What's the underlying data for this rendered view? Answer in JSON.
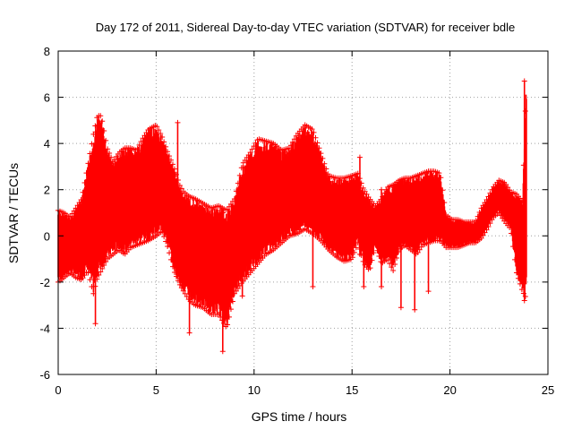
{
  "chart_data": {
    "type": "scatter",
    "title": "Day 172 of 2011, Sidereal Day-to-day VTEC variation (SDTVAR) for receiver bdle",
    "xlabel": "GPS time / hours",
    "ylabel": "SDTVAR / TECUs",
    "xlim": [
      0,
      25
    ],
    "ylim": [
      -6,
      8
    ],
    "xticks": [
      0,
      5,
      10,
      15,
      20,
      25
    ],
    "yticks": [
      -6,
      -4,
      -2,
      0,
      2,
      4,
      6,
      8
    ],
    "xtick_labels": [
      "0",
      "5",
      "10",
      "15",
      "20",
      "25"
    ],
    "ytick_labels": [
      "-6",
      "-4",
      "-2",
      "0",
      "2",
      "4",
      "6",
      "8"
    ],
    "grid": true,
    "marker": "+",
    "color": "#ff0000",
    "series": [
      {
        "name": "SDTVAR",
        "envelope": {
          "x": [
            0.0,
            0.3,
            0.6,
            0.9,
            1.2,
            1.5,
            1.8,
            2.0,
            2.2,
            2.5,
            2.8,
            3.1,
            3.4,
            3.7,
            4.0,
            4.3,
            4.6,
            5.0,
            5.3,
            5.6,
            5.9,
            6.2,
            6.4,
            6.7,
            7.0,
            7.4,
            7.8,
            8.2,
            8.6,
            9.0,
            9.4,
            9.8,
            10.2,
            10.6,
            11.0,
            11.4,
            11.8,
            12.2,
            12.6,
            13.0,
            13.4,
            13.8,
            14.2,
            14.6,
            15.0,
            15.3,
            15.6,
            15.9,
            16.2,
            16.5,
            16.8,
            17.1,
            17.4,
            17.7,
            18.0,
            18.3,
            18.6,
            18.9,
            19.2,
            19.5,
            19.8,
            20.1,
            20.4,
            20.7,
            21.0,
            21.3,
            21.6,
            21.9,
            22.2,
            22.5,
            22.8,
            23.1,
            23.4,
            23.7,
            23.9
          ],
          "upper": [
            1.1,
            1.0,
            0.8,
            1.2,
            1.6,
            3.0,
            4.4,
            5.2,
            5.2,
            3.8,
            3.2,
            3.6,
            3.8,
            3.8,
            3.7,
            4.2,
            4.6,
            4.8,
            4.3,
            3.6,
            3.0,
            2.2,
            1.9,
            1.7,
            1.6,
            1.4,
            1.2,
            1.3,
            1.1,
            1.6,
            3.1,
            3.6,
            4.2,
            4.1,
            4.0,
            3.7,
            3.8,
            4.4,
            4.8,
            4.6,
            3.6,
            2.6,
            2.5,
            2.5,
            2.6,
            2.7,
            2.0,
            1.6,
            1.3,
            1.6,
            2.1,
            2.2,
            2.4,
            2.5,
            2.5,
            2.6,
            2.7,
            2.8,
            2.8,
            2.7,
            0.9,
            0.7,
            0.7,
            0.6,
            0.6,
            0.6,
            1.2,
            1.6,
            2.1,
            2.4,
            2.3,
            1.9,
            1.8,
            1.5,
            6.7
          ],
          "lower": [
            -2.0,
            -1.8,
            -1.6,
            -1.8,
            -1.9,
            -1.5,
            -2.5,
            -1.8,
            -1.5,
            -1.0,
            -0.8,
            -0.6,
            -0.8,
            -0.5,
            -0.4,
            -0.3,
            -0.2,
            0.0,
            0.2,
            -0.5,
            -1.5,
            -2.1,
            -2.4,
            -2.8,
            -3.0,
            -3.1,
            -3.4,
            -3.4,
            -4.0,
            -2.5,
            -2.0,
            -1.6,
            -1.2,
            -0.8,
            -0.6,
            -0.3,
            0.0,
            0.1,
            0.3,
            0.1,
            -0.2,
            -0.6,
            -0.9,
            -1.1,
            -1.0,
            -0.3,
            -1.2,
            -1.5,
            -0.4,
            -1.2,
            -1.0,
            -1.5,
            -0.6,
            -0.4,
            -0.6,
            -0.8,
            -0.4,
            -0.3,
            -0.2,
            -0.2,
            -0.5,
            -0.5,
            -0.5,
            -0.4,
            -0.3,
            -0.3,
            -0.1,
            0.3,
            0.8,
            1.0,
            0.6,
            0.3,
            -1.6,
            -2.4,
            -2.7
          ]
        },
        "spikes": [
          {
            "x": 1.9,
            "y": [
              -3.8,
              4.5
            ]
          },
          {
            "x": 6.1,
            "y": [
              -1.5,
              4.9
            ]
          },
          {
            "x": 6.7,
            "y": [
              -4.2,
              0.8
            ]
          },
          {
            "x": 8.4,
            "y": [
              -5.0,
              1.0
            ]
          },
          {
            "x": 9.4,
            "y": [
              -2.6,
              2.5
            ]
          },
          {
            "x": 13.0,
            "y": [
              -2.2,
              1.5
            ]
          },
          {
            "x": 15.4,
            "y": [
              -0.8,
              3.4
            ]
          },
          {
            "x": 15.6,
            "y": [
              -2.2,
              1.0
            ]
          },
          {
            "x": 16.5,
            "y": [
              -2.2,
              2.0
            ]
          },
          {
            "x": 17.5,
            "y": [
              -3.1,
              0.5
            ]
          },
          {
            "x": 18.2,
            "y": [
              -3.2,
              0.3
            ]
          },
          {
            "x": 18.9,
            "y": [
              -2.4,
              0.3
            ]
          },
          {
            "x": 23.8,
            "y": [
              -2.8,
              6.7
            ]
          }
        ]
      }
    ]
  }
}
